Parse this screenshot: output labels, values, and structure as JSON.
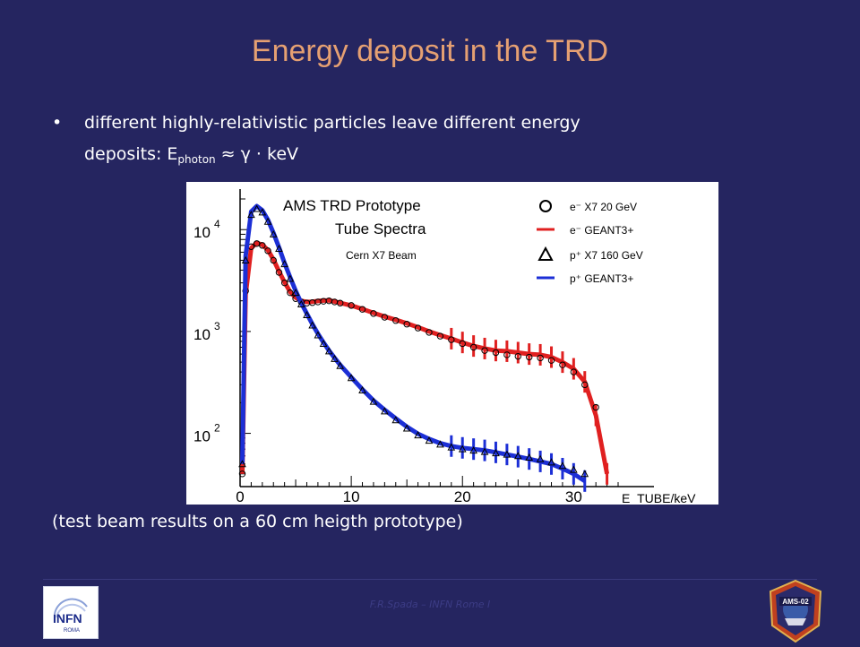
{
  "slide": {
    "title": "Energy deposit in the TRD",
    "bullet_dot": "•",
    "bullet_line1": "different highly-relativistic particles leave different energy",
    "bullet_line2_prefix": "deposits: E",
    "bullet_sub": "photon",
    "bullet_line2_suffix": " ≈ γ · keV",
    "caption": "(test beam results on a 60 cm heigth prototype)",
    "footer": "F.R.Spada – INFN Rome I",
    "infn_logo_text": "INFN",
    "infn_logo_subtext": "ROMA",
    "ams_logo_text": "AMS-02"
  },
  "chart_data": {
    "type": "line",
    "title": "AMS TRD Prototype",
    "subtitle": "Tube Spectra",
    "annotation": "Cern X7 Beam",
    "xlabel": "E_TUBE/keV",
    "xlim": [
      0,
      34
    ],
    "ylim": [
      30,
      25000
    ],
    "yscale": "log",
    "x_ticks": [
      "0",
      "10",
      "20",
      "30"
    ],
    "y_ticks": [
      {
        "value": 10000,
        "base": "10",
        "exp": "4"
      },
      {
        "value": 1000,
        "base": "10",
        "exp": "3"
      },
      {
        "value": 100,
        "base": "10",
        "exp": "2"
      }
    ],
    "x": [
      0.2,
      0.5,
      1,
      1.5,
      2,
      2.5,
      3,
      3.5,
      4,
      4.5,
      5,
      5.5,
      6,
      6.5,
      7,
      7.5,
      8,
      8.5,
      9,
      10,
      11,
      12,
      13,
      14,
      15,
      16,
      17,
      18,
      19,
      20,
      21,
      22,
      23,
      24,
      25,
      26,
      27,
      28,
      29,
      30,
      31,
      32,
      33
    ],
    "series": [
      {
        "name": "e⁻ X7   20 GeV",
        "marker": "circle",
        "color": "#000000",
        "values": [
          40,
          2500,
          6800,
          7300,
          7000,
          6200,
          5000,
          3800,
          3000,
          2400,
          2100,
          1950,
          1900,
          1920,
          1950,
          1980,
          2000,
          1950,
          1900,
          1800,
          1650,
          1500,
          1380,
          1280,
          1180,
          1080,
          980,
          900,
          830,
          760,
          700,
          650,
          620,
          590,
          570,
          560,
          550,
          520,
          470,
          400,
          300,
          180,
          null
        ]
      },
      {
        "name": "e⁻ GEANT3+",
        "marker": "line",
        "color": "#e02020",
        "values": [
          40,
          2300,
          6600,
          7400,
          7100,
          6300,
          5100,
          3900,
          3050,
          2450,
          2150,
          2000,
          1950,
          1960,
          1990,
          2010,
          2020,
          1970,
          1910,
          1800,
          1660,
          1520,
          1400,
          1300,
          1200,
          1100,
          1000,
          920,
          850,
          780,
          720,
          680,
          650,
          640,
          620,
          600,
          590,
          560,
          500,
          430,
          320,
          150,
          40
        ]
      },
      {
        "name": "p⁺ X7 160 GeV",
        "marker": "triangle",
        "color": "#000000",
        "values": [
          50,
          5000,
          14000,
          16000,
          14800,
          12000,
          9000,
          6500,
          4600,
          3300,
          2400,
          1850,
          1450,
          1150,
          920,
          760,
          640,
          540,
          460,
          350,
          265,
          205,
          165,
          135,
          112,
          96,
          85,
          78,
          73,
          70,
          68,
          66,
          64,
          62,
          60,
          58,
          56,
          52,
          48,
          44,
          40,
          null,
          null
        ]
      },
      {
        "name": "p⁺ GEANT3+",
        "marker": "line",
        "color": "#1c2fd6",
        "values": [
          50,
          5500,
          15000,
          17000,
          15500,
          12500,
          9300,
          6700,
          4700,
          3400,
          2500,
          1900,
          1500,
          1180,
          950,
          780,
          650,
          550,
          470,
          355,
          270,
          210,
          170,
          140,
          116,
          99,
          88,
          80,
          75,
          72,
          70,
          68,
          65,
          62,
          59,
          56,
          53,
          50,
          45,
          40,
          34,
          null,
          null
        ]
      }
    ]
  }
}
